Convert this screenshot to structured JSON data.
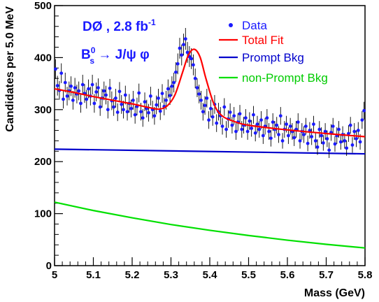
{
  "chart_data": {
    "type": "scatter",
    "xlabel": "Mass  (GeV)",
    "ylabel": "Candidates per 5.0 MeV",
    "xlim": [
      5.0,
      5.8
    ],
    "ylim": [
      0,
      500
    ],
    "x_ticks": [
      "5",
      "5.1",
      "5.2",
      "5.3",
      "5.4",
      "5.5",
      "5.6",
      "5.7",
      "5.8"
    ],
    "y_ticks": [
      "0",
      "100",
      "200",
      "300",
      "400",
      "500"
    ],
    "legend_position": "top-right",
    "annotations": {
      "experiment": "DØ , 2.8 fb",
      "lumi_exp": "-1",
      "decay_B": "B",
      "decay_sub": "s",
      "decay_sup": "0",
      "decay_rest": " → J/ψ φ"
    },
    "colors": {
      "data": "#1a1aff",
      "total_fit": "#ff0000",
      "prompt_bkg": "#0000cc",
      "nonprompt_bkg": "#00e000"
    },
    "series": [
      {
        "name": "Data",
        "style": "points-with-errors",
        "x": [
          5.0025,
          5.0075,
          5.0125,
          5.0175,
          5.0225,
          5.0275,
          5.0325,
          5.0375,
          5.0425,
          5.0475,
          5.0525,
          5.0575,
          5.0625,
          5.0675,
          5.0725,
          5.0775,
          5.0825,
          5.0875,
          5.0925,
          5.0975,
          5.1025,
          5.1075,
          5.1125,
          5.1175,
          5.1225,
          5.1275,
          5.1325,
          5.1375,
          5.1425,
          5.1475,
          5.1525,
          5.1575,
          5.1625,
          5.1675,
          5.1725,
          5.1775,
          5.1825,
          5.1875,
          5.1925,
          5.1975,
          5.2025,
          5.2075,
          5.2125,
          5.2175,
          5.2225,
          5.2275,
          5.2325,
          5.2375,
          5.2425,
          5.2475,
          5.2525,
          5.2575,
          5.2625,
          5.2675,
          5.2725,
          5.2775,
          5.2825,
          5.2875,
          5.2925,
          5.2975,
          5.3025,
          5.3075,
          5.3125,
          5.3175,
          5.3225,
          5.3275,
          5.3325,
          5.3375,
          5.3425,
          5.3475,
          5.3525,
          5.3575,
          5.3625,
          5.3675,
          5.3725,
          5.3775,
          5.3825,
          5.3875,
          5.3925,
          5.3975,
          5.4025,
          5.4075,
          5.4125,
          5.4175,
          5.4225,
          5.4275,
          5.4325,
          5.4375,
          5.4425,
          5.4475,
          5.4525,
          5.4575,
          5.4625,
          5.4675,
          5.4725,
          5.4775,
          5.4825,
          5.4875,
          5.4925,
          5.4975,
          5.5025,
          5.5075,
          5.5125,
          5.5175,
          5.5225,
          5.5275,
          5.5325,
          5.5375,
          5.5425,
          5.5475,
          5.5525,
          5.5575,
          5.5625,
          5.5675,
          5.5725,
          5.5775,
          5.5825,
          5.5875,
          5.5925,
          5.5975,
          5.6025,
          5.6075,
          5.6125,
          5.6175,
          5.6225,
          5.6275,
          5.6325,
          5.6375,
          5.6425,
          5.6475,
          5.6525,
          5.6575,
          5.6625,
          5.6675,
          5.6725,
          5.6775,
          5.6825,
          5.6875,
          5.6925,
          5.6975,
          5.7025,
          5.7075,
          5.7125,
          5.7175,
          5.7225,
          5.7275,
          5.7325,
          5.7375,
          5.7425,
          5.7475,
          5.7525,
          5.7575,
          5.7625,
          5.7675,
          5.7725,
          5.7775,
          5.7825,
          5.7875,
          5.7925,
          5.7975
        ],
        "y": [
          378,
          346,
          337,
          370,
          320,
          352,
          326,
          336,
          345,
          318,
          342,
          330,
          336,
          312,
          348,
          331,
          320,
          340,
          326,
          348,
          312,
          334,
          342,
          305,
          322,
          336,
          328,
          300,
          341,
          317,
          305,
          322,
          295,
          335,
          310,
          300,
          328,
          296,
          312,
          302,
          318,
          290,
          306,
          332,
          296,
          284,
          315,
          302,
          294,
          326,
          300,
          288,
          309,
          322,
          297,
          331,
          306,
          318,
          340,
          327,
          345,
          352,
          372,
          388,
          418,
          405,
          425,
          436,
          410,
          402,
          398,
          386,
          360,
          342,
          330,
          318,
          296,
          308,
          322,
          280,
          302,
          286,
          310,
          274,
          296,
          288,
          268,
          305,
          262,
          282,
          295,
          270,
          288,
          258,
          276,
          292,
          262,
          270,
          284,
          258,
          278,
          264,
          290,
          255,
          272,
          262,
          280,
          250,
          268,
          284,
          258,
          245,
          276,
          262,
          270,
          252,
          288,
          240,
          262,
          272,
          250,
          268,
          258,
          246,
          262,
          276,
          240,
          258,
          252,
          268,
          235,
          260,
          248,
          272,
          240,
          228,
          262,
          250,
          236,
          258,
          244,
          222,
          256,
          268,
          234,
          250,
          262,
          238,
          252,
          240,
          226,
          254,
          270,
          232,
          258,
          244,
          260,
          238,
          280,
          298
        ],
        "err": [
          19,
          19,
          18,
          19,
          18,
          19,
          18,
          18,
          19,
          18,
          19,
          18,
          18,
          18,
          19,
          18,
          18,
          18,
          18,
          19,
          18,
          18,
          18,
          17,
          18,
          18,
          18,
          17,
          18,
          18,
          17,
          18,
          17,
          18,
          18,
          17,
          18,
          17,
          18,
          17,
          18,
          17,
          17,
          18,
          17,
          17,
          18,
          17,
          17,
          18,
          17,
          17,
          18,
          18,
          17,
          18,
          17,
          18,
          18,
          18,
          19,
          19,
          19,
          20,
          20,
          20,
          21,
          21,
          20,
          20,
          20,
          20,
          19,
          18,
          18,
          18,
          17,
          18,
          18,
          17,
          17,
          17,
          18,
          17,
          17,
          17,
          16,
          17,
          16,
          17,
          17,
          16,
          17,
          16,
          17,
          17,
          16,
          16,
          17,
          16,
          17,
          16,
          17,
          16,
          16,
          16,
          17,
          16,
          16,
          17,
          16,
          16,
          17,
          16,
          16,
          16,
          17,
          15,
          16,
          16,
          16,
          16,
          16,
          16,
          16,
          17,
          15,
          16,
          16,
          16,
          15,
          16,
          16,
          16,
          15,
          15,
          16,
          16,
          15,
          16,
          16,
          15,
          16,
          16,
          15,
          16,
          16,
          15,
          16,
          15,
          15,
          16,
          16,
          15,
          16,
          16,
          16,
          15,
          17,
          17
        ]
      },
      {
        "name": "Total Fit",
        "style": "line",
        "x": [
          5.0,
          5.05,
          5.1,
          5.15,
          5.2,
          5.25,
          5.27,
          5.29,
          5.31,
          5.33,
          5.345,
          5.36,
          5.375,
          5.39,
          5.41,
          5.43,
          5.46,
          5.5,
          5.6,
          5.7,
          5.8
        ],
        "y": [
          340,
          333,
          325,
          318,
          311,
          303,
          301,
          307,
          328,
          372,
          405,
          416,
          401,
          360,
          312,
          289,
          278,
          270,
          261,
          254,
          248
        ]
      },
      {
        "name": "Prompt Bkg",
        "style": "line",
        "x": [
          5.0,
          5.8
        ],
        "y": [
          224,
          215
        ]
      },
      {
        "name": "non-Prompt Bkg",
        "style": "line",
        "x": [
          5.0,
          5.1,
          5.2,
          5.3,
          5.4,
          5.5,
          5.6,
          5.7,
          5.8
        ],
        "y": [
          122,
          106,
          92,
          79,
          68,
          58,
          49,
          41,
          34
        ]
      }
    ]
  }
}
